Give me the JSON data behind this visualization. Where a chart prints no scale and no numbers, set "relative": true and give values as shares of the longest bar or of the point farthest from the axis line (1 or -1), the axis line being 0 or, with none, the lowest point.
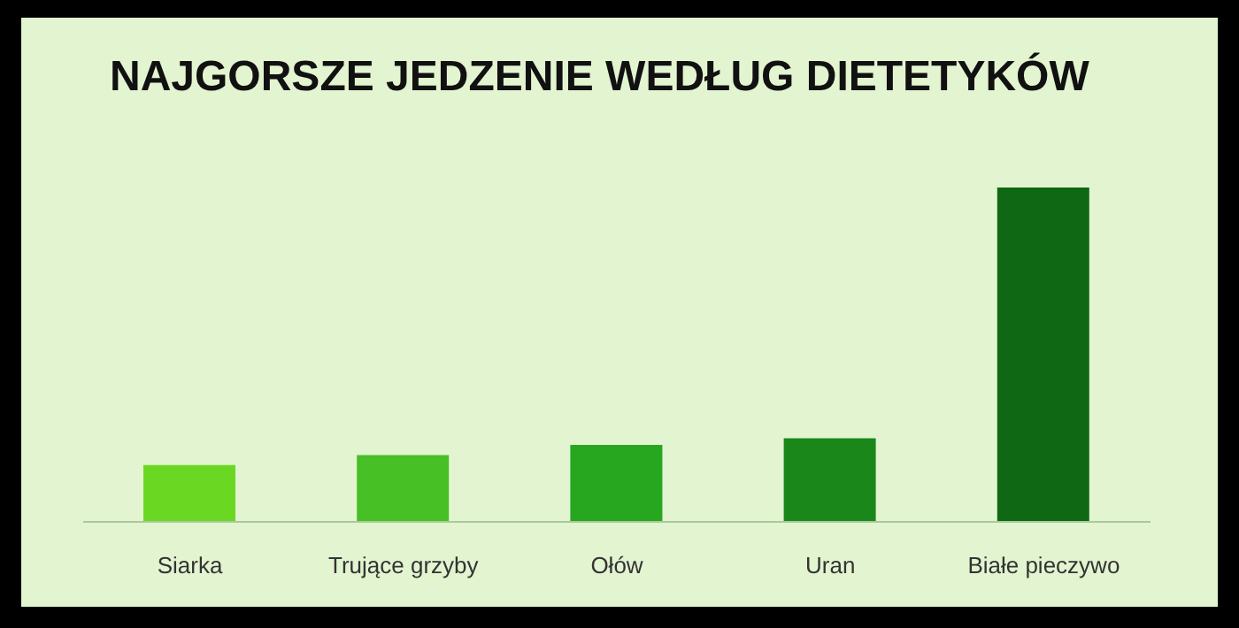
{
  "chart_data": {
    "type": "bar",
    "title": "NAJGORSZE JEDZENIE WEDŁUG DIETETYKÓW",
    "relative": true,
    "categories": [
      "Siarka",
      "Trujące grzyby",
      "Ołów",
      "Uran",
      "Białe pieczywo"
    ],
    "values": [
      0.17,
      0.2,
      0.23,
      0.25,
      1
    ],
    "colors": [
      "#6ad823",
      "#46c024",
      "#27a61f",
      "#1a871a",
      "#0f6814"
    ],
    "grid": false,
    "legend": false
  }
}
